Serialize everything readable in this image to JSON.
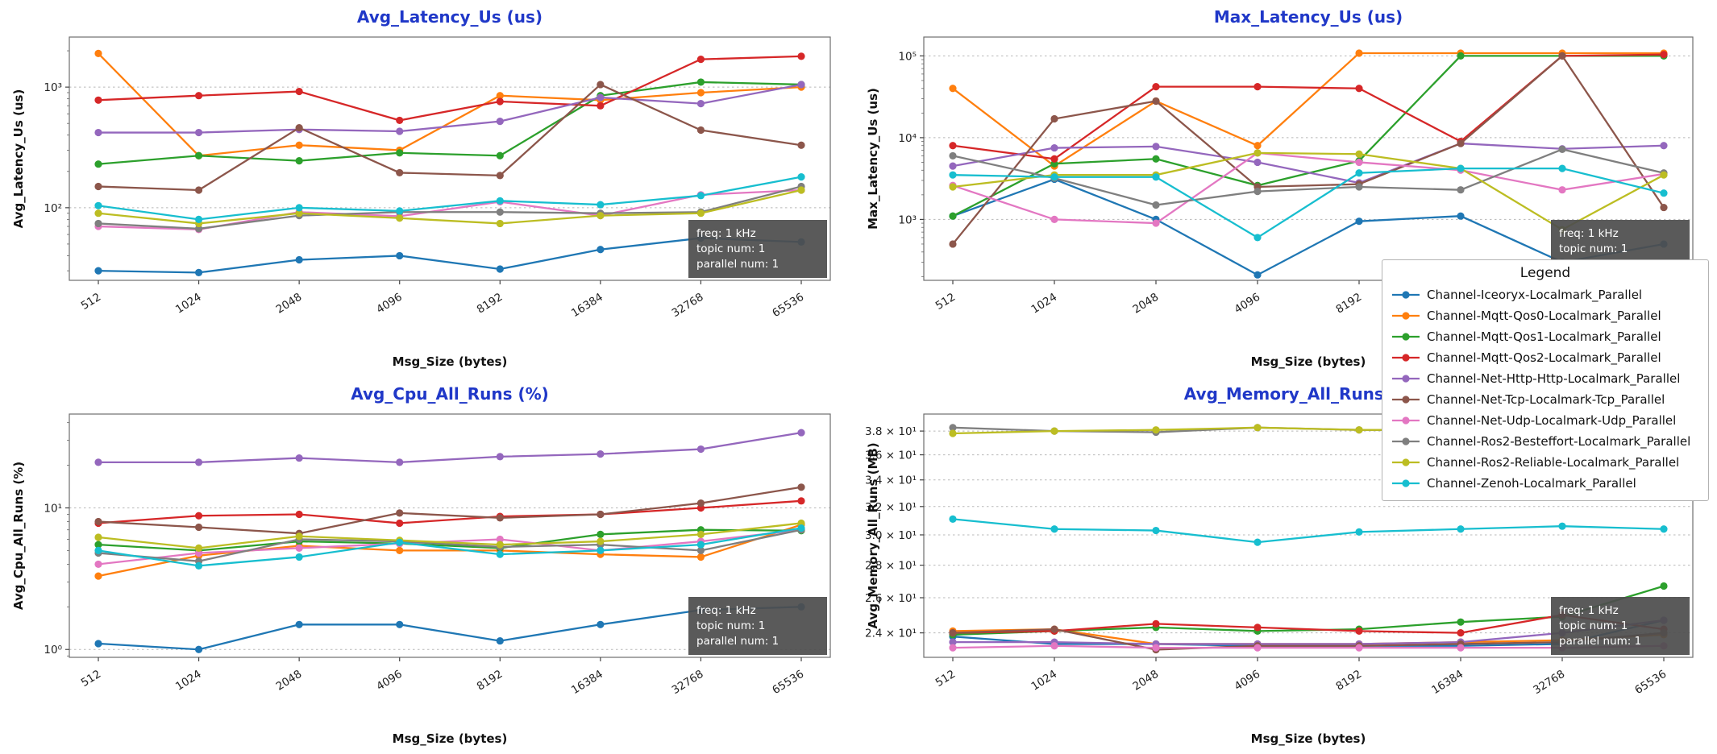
{
  "figure": {
    "background": "#ffffff",
    "title_color": "#2038c8",
    "axis_color": "#6f6f6f",
    "grid_color": "#b8b8b8",
    "annotation_bg": "#4d4d4d",
    "annotation_fg": "#ffffff"
  },
  "annotation": {
    "lines": [
      "freq: 1 kHz",
      "topic num: 1",
      "parallel num: 1"
    ]
  },
  "legend": {
    "title": "Legend",
    "position": "right",
    "entries": [
      {
        "label": "Channel-Iceoryx-Localmark_Parallel",
        "color": "#1f77b4"
      },
      {
        "label": "Channel-Mqtt-Qos0-Localmark_Parallel",
        "color": "#ff7f0e"
      },
      {
        "label": "Channel-Mqtt-Qos1-Localmark_Parallel",
        "color": "#2ca02c"
      },
      {
        "label": "Channel-Mqtt-Qos2-Localmark_Parallel",
        "color": "#d62728"
      },
      {
        "label": "Channel-Net-Http-Http-Localmark_Parallel",
        "color": "#9467bd"
      },
      {
        "label": "Channel-Net-Tcp-Localmark-Tcp_Parallel",
        "color": "#8c564b"
      },
      {
        "label": "Channel-Net-Udp-Localmark-Udp_Parallel",
        "color": "#e377c2"
      },
      {
        "label": "Channel-Ros2-Besteffort-Localmark_Parallel",
        "color": "#7f7f7f"
      },
      {
        "label": "Channel-Ros2-Reliable-Localmark_Parallel",
        "color": "#bcbd22"
      },
      {
        "label": "Channel-Zenoh-Localmark_Parallel",
        "color": "#17becf"
      }
    ]
  },
  "chart_data": [
    {
      "type": "line",
      "title": "Avg_Latency_Us  (us)",
      "xlabel": "Msg_Size (bytes)",
      "ylabel": "Avg_Latency_Us (us)",
      "x_categories": [
        "512",
        "1024",
        "2048",
        "4096",
        "8192",
        "16384",
        "32768",
        "65536"
      ],
      "y_scale": "log",
      "ylim": [
        25,
        2600
      ],
      "minor_ticks": true,
      "grid": true,
      "y_ticks": [
        {
          "v": 100,
          "label": "10²"
        },
        {
          "v": 1000,
          "label": "10³"
        }
      ],
      "series": [
        {
          "name": "Channel-Iceoryx-Localmark_Parallel",
          "values": [
            30,
            29,
            37,
            40,
            31,
            45,
            56,
            52
          ]
        },
        {
          "name": "Channel-Mqtt-Qos0-Localmark_Parallel",
          "values": [
            1900,
            270,
            330,
            300,
            850,
            780,
            900,
            1000
          ]
        },
        {
          "name": "Channel-Mqtt-Qos1-Localmark_Parallel",
          "values": [
            230,
            270,
            245,
            285,
            270,
            850,
            1100,
            1050
          ]
        },
        {
          "name": "Channel-Mqtt-Qos2-Localmark_Parallel",
          "values": [
            780,
            850,
            920,
            530,
            760,
            700,
            1700,
            1800
          ]
        },
        {
          "name": "Channel-Net-Http-Http-Localmark_Parallel",
          "values": [
            420,
            420,
            445,
            430,
            520,
            820,
            730,
            1050
          ]
        },
        {
          "name": "Channel-Net-Tcp-Localmark-Tcp_Parallel",
          "values": [
            150,
            140,
            460,
            195,
            185,
            1050,
            440,
            330
          ]
        },
        {
          "name": "Channel-Net-Udp-Localmark-Udp_Parallel",
          "values": [
            70,
            66,
            92,
            85,
            112,
            86,
            128,
            140
          ]
        },
        {
          "name": "Channel-Ros2-Besteffort-Localmark_Parallel",
          "values": [
            74,
            67,
            86,
            92,
            92,
            90,
            92,
            150
          ]
        },
        {
          "name": "Channel-Ros2-Reliable-Localmark_Parallel",
          "values": [
            90,
            74,
            90,
            82,
            74,
            86,
            90,
            140
          ]
        },
        {
          "name": "Channel-Zenoh-Localmark_Parallel",
          "values": [
            104,
            80,
            100,
            94,
            114,
            106,
            126,
            180
          ]
        }
      ]
    },
    {
      "type": "line",
      "title": "Max_Latency_Us  (us)",
      "xlabel": "Msg_Size (bytes)",
      "ylabel": "Max_Latency_Us (us)",
      "x_categories": [
        "512",
        "1024",
        "2048",
        "4096",
        "8192",
        "16384",
        "32768",
        "65536"
      ],
      "y_scale": "log",
      "ylim": [
        180,
        170000
      ],
      "minor_ticks": true,
      "grid": true,
      "y_ticks": [
        {
          "v": 1000,
          "label": "10³"
        },
        {
          "v": 10000,
          "label": "10⁴"
        },
        {
          "v": 100000,
          "label": "10⁵"
        }
      ],
      "series": [
        {
          "name": "Channel-Iceoryx-Localmark_Parallel",
          "values": [
            1100,
            3100,
            1000,
            210,
            950,
            1100,
            300,
            500
          ]
        },
        {
          "name": "Channel-Mqtt-Qos0-Localmark_Parallel",
          "values": [
            40000,
            4500,
            28000,
            8000,
            108000,
            108000,
            108000,
            108000
          ]
        },
        {
          "name": "Channel-Mqtt-Qos1-Localmark_Parallel",
          "values": [
            1100,
            4800,
            5500,
            2600,
            5200,
            100000,
            100000,
            100000
          ]
        },
        {
          "name": "Channel-Mqtt-Qos2-Localmark_Parallel",
          "values": [
            8000,
            5500,
            42000,
            42000,
            40000,
            9000,
            100000,
            104000
          ]
        },
        {
          "name": "Channel-Net-Http-Http-Localmark_Parallel",
          "values": [
            4500,
            7500,
            7800,
            5000,
            2800,
            8500,
            7300,
            8000
          ]
        },
        {
          "name": "Channel-Net-Tcp-Localmark-Tcp_Parallel",
          "values": [
            500,
            17000,
            28000,
            2500,
            2700,
            8500,
            100000,
            1400
          ]
        },
        {
          "name": "Channel-Net-Udp-Localmark-Udp_Parallel",
          "values": [
            2600,
            1000,
            900,
            6500,
            5000,
            4000,
            2300,
            3600
          ]
        },
        {
          "name": "Channel-Ros2-Besteffort-Localmark_Parallel",
          "values": [
            6000,
            3200,
            1500,
            2200,
            2500,
            2300,
            7200,
            3700
          ]
        },
        {
          "name": "Channel-Ros2-Reliable-Localmark_Parallel",
          "values": [
            2500,
            3500,
            3500,
            6500,
            6300,
            4200,
            750,
            3500
          ]
        },
        {
          "name": "Channel-Zenoh-Localmark_Parallel",
          "values": [
            3500,
            3300,
            3300,
            600,
            3700,
            4200,
            4200,
            2100
          ]
        }
      ]
    },
    {
      "type": "line",
      "title": "Avg_Cpu_All_Runs  (%)",
      "xlabel": "Msg_Size (bytes)",
      "ylabel": "Avg_Cpu_All_Runs (%)",
      "x_categories": [
        "512",
        "1024",
        "2048",
        "4096",
        "8192",
        "16384",
        "32768",
        "65536"
      ],
      "y_scale": "log",
      "ylim": [
        0.88,
        46
      ],
      "minor_ticks": true,
      "grid": true,
      "y_ticks": [
        {
          "v": 1,
          "label": "10⁰"
        },
        {
          "v": 10,
          "label": "10¹"
        }
      ],
      "series": [
        {
          "name": "Channel-Iceoryx-Localmark_Parallel",
          "values": [
            1.1,
            1.0,
            1.5,
            1.5,
            1.15,
            1.5,
            1.9,
            2.0
          ]
        },
        {
          "name": "Channel-Mqtt-Qos0-Localmark_Parallel",
          "values": [
            3.3,
            4.6,
            5.4,
            5.0,
            5.0,
            4.7,
            4.5,
            7.6
          ]
        },
        {
          "name": "Channel-Mqtt-Qos1-Localmark_Parallel",
          "values": [
            5.5,
            5.0,
            5.8,
            5.6,
            5.2,
            6.5,
            7.0,
            6.9
          ]
        },
        {
          "name": "Channel-Mqtt-Qos2-Localmark_Parallel",
          "values": [
            7.8,
            8.8,
            9.0,
            7.8,
            8.7,
            9.0,
            10.0,
            11.2
          ]
        },
        {
          "name": "Channel-Net-Http-Http-Localmark_Parallel",
          "values": [
            21,
            21,
            22.5,
            21,
            23,
            24,
            26,
            34
          ]
        },
        {
          "name": "Channel-Net-Tcp-Localmark-Tcp_Parallel",
          "values": [
            8.0,
            7.3,
            6.6,
            9.2,
            8.5,
            9.0,
            10.8,
            14
          ]
        },
        {
          "name": "Channel-Net-Udp-Localmark-Udp_Parallel",
          "values": [
            4.0,
            4.8,
            5.2,
            5.6,
            6.0,
            5.0,
            5.8,
            7.0
          ]
        },
        {
          "name": "Channel-Ros2-Besteffort-Localmark_Parallel",
          "values": [
            4.8,
            4.2,
            6.0,
            5.8,
            5.3,
            5.5,
            5.0,
            7.0
          ]
        },
        {
          "name": "Channel-Ros2-Reliable-Localmark_Parallel",
          "values": [
            6.2,
            5.2,
            6.3,
            5.9,
            5.5,
            5.8,
            6.5,
            7.8
          ]
        },
        {
          "name": "Channel-Zenoh-Localmark_Parallel",
          "values": [
            5.0,
            3.9,
            4.5,
            5.7,
            4.7,
            5.0,
            5.5,
            7.2
          ]
        }
      ]
    },
    {
      "type": "line",
      "title": "Avg_Memory_All_Runs  (MB)",
      "xlabel": "Msg_Size (bytes)",
      "ylabel": "Avg_Memory_All_Runs (MB)",
      "x_categories": [
        "512",
        "1024",
        "2048",
        "4096",
        "8192",
        "16384",
        "32768",
        "65536"
      ],
      "y_scale": "log",
      "ylim": [
        22.7,
        39.5
      ],
      "minor_ticks": false,
      "grid": true,
      "y_ticks": [
        {
          "v": 24,
          "label": "2.4 × 10¹"
        },
        {
          "v": 26,
          "label": "2.6 × 10¹"
        },
        {
          "v": 28,
          "label": "2.8 × 10¹"
        },
        {
          "v": 30,
          "label": "3.0 × 10¹"
        },
        {
          "v": 32,
          "label": "3.2 × 10¹"
        },
        {
          "v": 34,
          "label": "3.4 × 10¹"
        },
        {
          "v": 36,
          "label": "3.6 × 10¹"
        },
        {
          "v": 38,
          "label": "3.8 × 10¹"
        }
      ],
      "series": [
        {
          "name": "Channel-Iceoryx-Localmark_Parallel",
          "values": [
            23.8,
            23.4,
            23.4,
            23.3,
            23.3,
            23.3,
            23.4,
            24.7
          ]
        },
        {
          "name": "Channel-Mqtt-Qos0-Localmark_Parallel",
          "values": [
            24.1,
            24.2,
            23.4,
            23.4,
            23.4,
            23.5,
            23.6,
            23.9
          ]
        },
        {
          "name": "Channel-Mqtt-Qos1-Localmark_Parallel",
          "values": [
            23.9,
            24.1,
            24.3,
            24.1,
            24.2,
            24.6,
            24.9,
            26.7
          ]
        },
        {
          "name": "Channel-Mqtt-Qos2-Localmark_Parallel",
          "values": [
            24.0,
            24.1,
            24.5,
            24.3,
            24.1,
            24.0,
            25.0,
            24.2
          ]
        },
        {
          "name": "Channel-Net-Http-Http-Localmark_Parallel",
          "values": [
            23.5,
            23.5,
            23.4,
            23.4,
            23.4,
            23.5,
            24.0,
            24.7
          ]
        },
        {
          "name": "Channel-Net-Tcp-Localmark-Tcp_Parallel",
          "values": [
            24.0,
            24.2,
            23.1,
            23.3,
            23.3,
            23.4,
            23.5,
            24.0
          ]
        },
        {
          "name": "Channel-Net-Udp-Localmark-Udp_Parallel",
          "values": [
            23.2,
            23.3,
            23.2,
            23.2,
            23.2,
            23.2,
            23.2,
            23.3
          ]
        },
        {
          "name": "Channel-Ros2-Besteffort-Localmark_Parallel",
          "values": [
            38.3,
            38.0,
            37.9,
            38.3,
            38.1,
            38.1,
            38.3,
            38.4
          ]
        },
        {
          "name": "Channel-Ros2-Reliable-Localmark_Parallel",
          "values": [
            37.8,
            38.0,
            38.1,
            38.3,
            38.1,
            38.1,
            38.3,
            38.5
          ]
        },
        {
          "name": "Channel-Zenoh-Localmark_Parallel",
          "values": [
            31.1,
            30.4,
            30.3,
            29.5,
            30.2,
            30.4,
            30.6,
            30.4
          ]
        }
      ]
    }
  ]
}
